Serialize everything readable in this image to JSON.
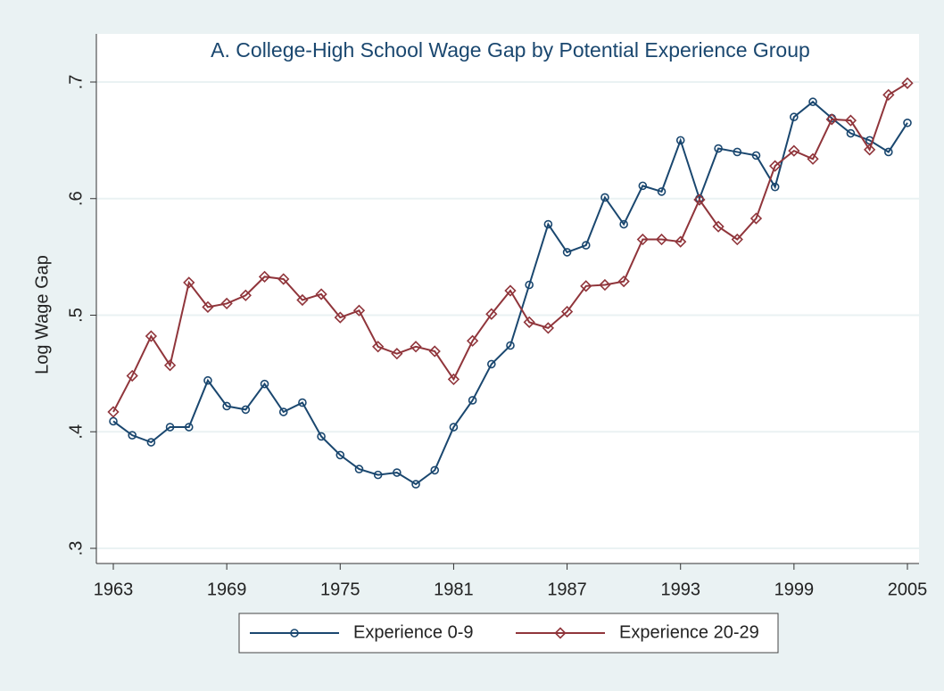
{
  "chart_data": {
    "type": "line",
    "title": "A. College-High School Wage Gap by Potential Experience Group",
    "y_label": "Log Wage Gap",
    "x": [
      1963,
      1964,
      1965,
      1966,
      1967,
      1968,
      1969,
      1970,
      1971,
      1972,
      1973,
      1974,
      1975,
      1976,
      1977,
      1978,
      1979,
      1980,
      1981,
      1982,
      1983,
      1984,
      1985,
      1986,
      1987,
      1988,
      1989,
      1990,
      1991,
      1992,
      1993,
      1994,
      1995,
      1996,
      1997,
      1998,
      1999,
      2000,
      2001,
      2002,
      2003,
      2004,
      2005
    ],
    "series": [
      {
        "name": "Experience 0-9",
        "color": "#1a476f",
        "marker": "circle",
        "values": [
          0.409,
          0.397,
          0.391,
          0.404,
          0.404,
          0.444,
          0.422,
          0.419,
          0.441,
          0.417,
          0.425,
          0.396,
          0.38,
          0.368,
          0.363,
          0.365,
          0.355,
          0.367,
          0.404,
          0.427,
          0.458,
          0.474,
          0.526,
          0.578,
          0.554,
          0.56,
          0.601,
          0.578,
          0.611,
          0.606,
          0.65,
          0.6,
          0.643,
          0.64,
          0.637,
          0.61,
          0.67,
          0.683,
          0.669,
          0.656,
          0.65,
          0.64,
          0.665
        ]
      },
      {
        "name": "Experience 20-29",
        "color": "#90353b",
        "marker": "diamond",
        "values": [
          0.417,
          0.448,
          0.482,
          0.457,
          0.528,
          0.507,
          0.51,
          0.517,
          0.533,
          0.531,
          0.513,
          0.518,
          0.498,
          0.504,
          0.473,
          0.467,
          0.473,
          0.469,
          0.445,
          0.478,
          0.501,
          0.521,
          0.494,
          0.489,
          0.503,
          0.525,
          0.526,
          0.529,
          0.565,
          0.565,
          0.563,
          0.599,
          0.576,
          0.565,
          0.583,
          0.628,
          0.641,
          0.634,
          0.668,
          0.667,
          0.642,
          0.689,
          0.699
        ]
      }
    ],
    "xlim": [
      1963,
      2005
    ],
    "xticks": [
      1963,
      1969,
      1975,
      1981,
      1987,
      1993,
      1999,
      2005
    ],
    "ylim": [
      0.3,
      0.7
    ],
    "yticks": [
      {
        "value": 0.3,
        "label": ".3"
      },
      {
        "value": 0.4,
        "label": ".4"
      },
      {
        "value": 0.5,
        "label": ".5"
      },
      {
        "value": 0.6,
        "label": ".6"
      },
      {
        "value": 0.7,
        "label": ".7"
      }
    ],
    "grid": true,
    "legend": "bottom"
  }
}
